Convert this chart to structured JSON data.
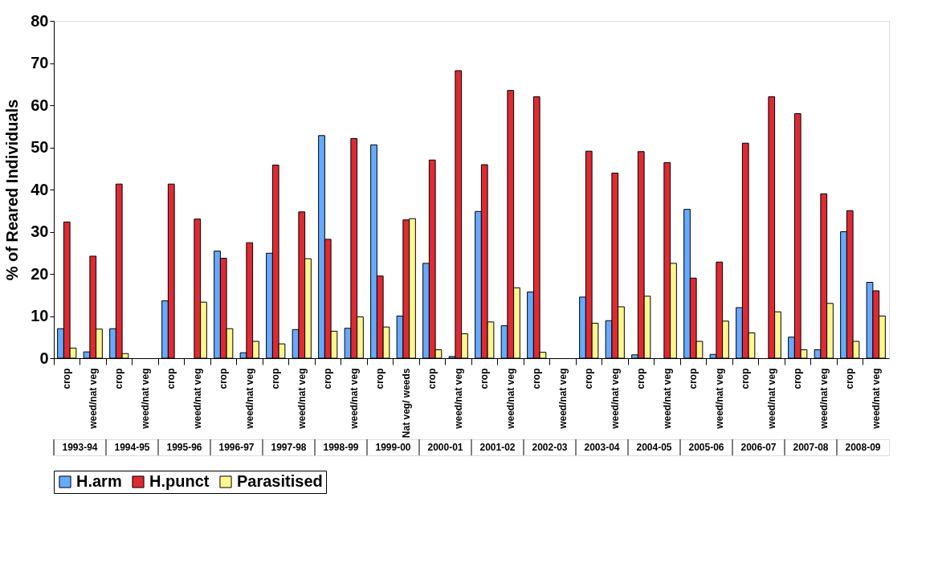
{
  "chart_data": {
    "type": "bar",
    "ylabel": "% of Reared Individuals",
    "categories": [
      "crop",
      "weed/nat veg",
      "crop",
      "weed/nat veg",
      "crop",
      "weed/nat veg",
      "crop",
      "weed/nat veg",
      "crop",
      "weed/nat veg",
      "crop",
      "weed/nat veg",
      "crop",
      "Nat veg/ weeds",
      "crop",
      "weed/nat veg",
      "crop",
      "weed/nat veg",
      "crop",
      "weed/nat veg",
      "crop",
      "weed/nat veg",
      "crop",
      "weed/nat veg",
      "crop",
      "weed/nat veg",
      "crop",
      "weed/nat veg",
      "crop",
      "weed/nat veg",
      "crop",
      "weed/nat veg"
    ],
    "annotations": [
      "1993-94",
      "1994-95",
      "1995-96",
      "1996-97",
      "1997-98",
      "1998-99",
      "1999-00",
      "2000-01",
      "2001-02",
      "2002-03",
      "2003-04",
      "2004-05",
      "2005-06",
      "2006-07",
      "2007-08",
      "2008-09"
    ],
    "series": [
      {
        "name": "H.arm",
        "color": "#66aaff",
        "values": [
          7,
          1.5,
          7,
          null,
          13.6,
          null,
          25.4,
          1.3,
          24.9,
          6.8,
          52.8,
          7.1,
          50.6,
          10,
          22.5,
          0.4,
          34.8,
          7.7,
          15.7,
          null,
          14.5,
          8.9,
          0.8,
          null,
          35.3,
          0.9,
          12,
          null,
          5,
          2,
          30,
          18
        ]
      },
      {
        "name": "H.punct",
        "color": "#dd2a33",
        "values": [
          32.3,
          24.2,
          41.3,
          null,
          41.3,
          33,
          23.7,
          27.4,
          45.8,
          34.7,
          28.2,
          52.1,
          19.5,
          32.8,
          47,
          68.2,
          45.9,
          63.5,
          62,
          null,
          49.1,
          43.9,
          49,
          46.4,
          19,
          22.8,
          51,
          62,
          58,
          39,
          35,
          16
        ]
      },
      {
        "name": "Parasitised",
        "color": "#fff68f",
        "values": [
          2.4,
          6.9,
          1.1,
          null,
          null,
          13.3,
          7,
          4,
          3.4,
          23.6,
          6.4,
          9.8,
          7.4,
          33.1,
          2,
          5.8,
          8.6,
          16.7,
          1.4,
          null,
          8.3,
          12.2,
          14.7,
          22.5,
          4,
          8.8,
          6,
          11,
          2,
          13,
          4,
          10
        ]
      }
    ],
    "ylim": [
      0,
      80
    ],
    "yticks": [
      0,
      10,
      20,
      30,
      40,
      50,
      60,
      70,
      80
    ],
    "grid": false,
    "legend": "bottom"
  }
}
